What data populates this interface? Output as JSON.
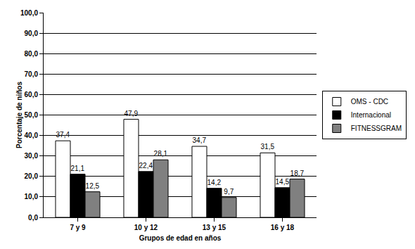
{
  "chart_data": {
    "type": "bar",
    "x_label": "Grupos de edad en años",
    "y_label": "Porcentaje de niños",
    "categories": [
      "7 y 9",
      "10 y 12",
      "13 y 15",
      "16 y 18"
    ],
    "series": [
      {
        "name": "OMS - CDC",
        "color": "#ffffff",
        "values": [
          37.4,
          47.9,
          34.7,
          31.5
        ],
        "value_labels": [
          "37,4",
          "47,9",
          "34,7",
          "31,5"
        ]
      },
      {
        "name": "Internacional",
        "color": "#000000",
        "values": [
          21.1,
          22.4,
          14.2,
          14.5
        ],
        "value_labels": [
          "21,1",
          "22,4",
          "14,2",
          "14,5"
        ]
      },
      {
        "name": "FITNESSGRAM",
        "color": "#808080",
        "values": [
          12.5,
          28.1,
          9.7,
          18.7
        ],
        "value_labels": [
          "12,5",
          "28,1",
          "9,7",
          "18,7"
        ]
      }
    ],
    "ylim": [
      0,
      100
    ],
    "yticks": [
      {
        "value": 0,
        "label": "0,0"
      },
      {
        "value": 10,
        "label": "10,0"
      },
      {
        "value": 20,
        "label": "20,0"
      },
      {
        "value": 30,
        "label": "30,0"
      },
      {
        "value": 40,
        "label": "40,0"
      },
      {
        "value": 50,
        "label": "50,0"
      },
      {
        "value": 60,
        "label": "60,0"
      },
      {
        "value": 70,
        "label": "70,0"
      },
      {
        "value": 80,
        "label": "80,0"
      },
      {
        "value": 90,
        "label": "90,0"
      },
      {
        "value": 100,
        "label": "100,0"
      }
    ],
    "grid": true,
    "legend": "right",
    "data_labels": true
  }
}
